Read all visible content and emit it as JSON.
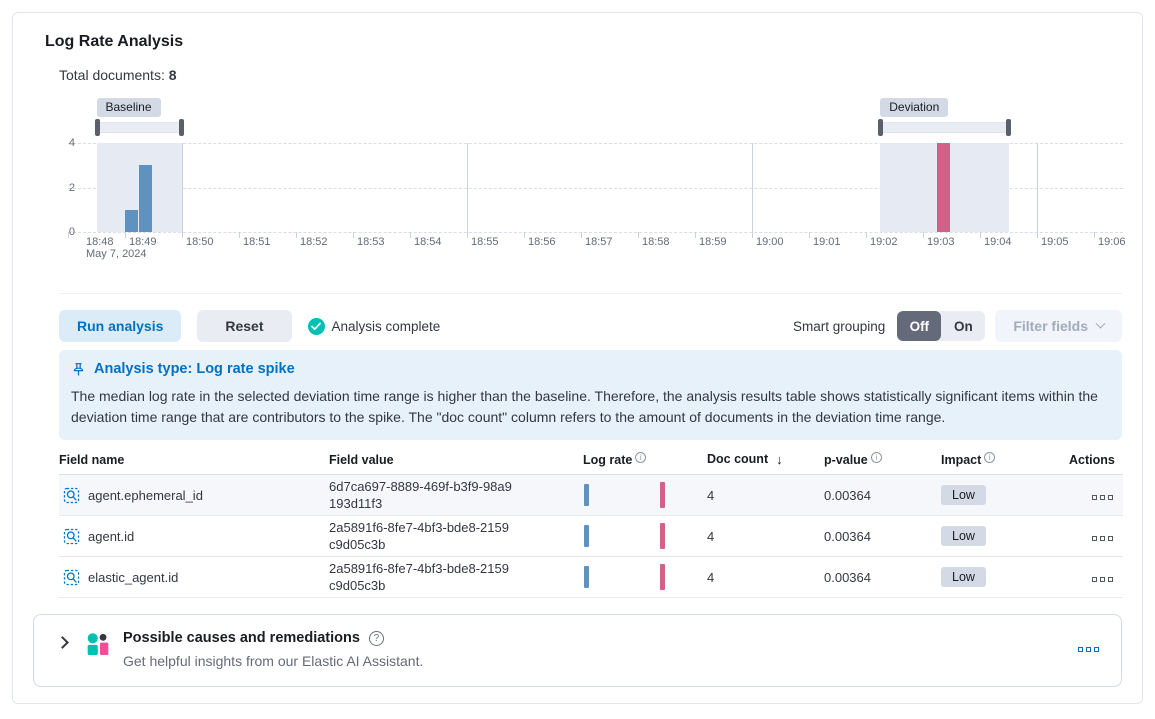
{
  "header": {
    "title": "Log Rate Analysis",
    "total_documents_label": "Total documents:",
    "total_documents_value": "8"
  },
  "chart_data": {
    "type": "bar",
    "title": "Document count histogram with baseline and deviation time ranges",
    "x_date_label": "May 7, 2024",
    "x_ticks": [
      "18:48",
      "18:49",
      "18:50",
      "18:51",
      "18:52",
      "18:53",
      "18:54",
      "18:55",
      "18:56",
      "18:57",
      "18:58",
      "18:59",
      "19:00",
      "19:01",
      "19:02",
      "19:03",
      "19:04",
      "19:05",
      "19:06"
    ],
    "y_ticks": [
      4,
      2,
      0
    ],
    "ylim": [
      0,
      4
    ],
    "bucket_seconds": 15,
    "grid": "horizontal-dashed, vertical every 5 minutes",
    "baseline": {
      "label": "Baseline",
      "window": [
        "18:48:30",
        "18:50:00"
      ],
      "color": "#6092C0",
      "bars": [
        {
          "time": "18:49:00",
          "value": 1
        },
        {
          "time": "18:49:15",
          "value": 3
        }
      ]
    },
    "deviation": {
      "label": "Deviation",
      "window": [
        "19:02:15",
        "19:04:30"
      ],
      "color": "#D36086",
      "bars": [
        {
          "time": "19:03:15",
          "value": 4
        }
      ]
    }
  },
  "toolbar": {
    "run_analysis": "Run analysis",
    "reset": "Reset",
    "status": "Analysis complete",
    "smart_grouping_label": "Smart grouping",
    "toggle_off": "Off",
    "toggle_on": "On",
    "filter_fields": "Filter fields"
  },
  "callout": {
    "title": "Analysis type: Log rate spike",
    "body": "The median log rate in the selected deviation time range is higher than the baseline. Therefore, the analysis results table shows statistically significant items within the deviation time range that are contributors to the spike. The \"doc count\" column refers to the amount of documents in the deviation time range."
  },
  "table": {
    "columns": {
      "field_name": "Field name",
      "field_value": "Field value",
      "log_rate": "Log rate",
      "doc_count": "Doc count",
      "p_value": "p-value",
      "impact": "Impact",
      "actions": "Actions"
    },
    "sort": {
      "column": "doc_count",
      "direction": "descending",
      "arrow": "↓"
    },
    "rows": [
      {
        "field_name": "agent.ephemeral_id",
        "field_value": "6d7ca697-8889-469f-b3f9-98a9193d11f3",
        "doc_count": "4",
        "p_value": "0.00364",
        "impact": "Low"
      },
      {
        "field_name": "agent.id",
        "field_value": "2a5891f6-8fe7-4bf3-bde8-2159c9d05c3b",
        "doc_count": "4",
        "p_value": "0.00364",
        "impact": "Low"
      },
      {
        "field_name": "elastic_agent.id",
        "field_value": "2a5891f6-8fe7-4bf3-bde8-2159c9d05c3b",
        "doc_count": "4",
        "p_value": "0.00364",
        "impact": "Low"
      }
    ]
  },
  "insights": {
    "title": "Possible causes and remediations",
    "subtitle": "Get helpful insights from our Elastic AI Assistant."
  },
  "colors": {
    "primary": "#0071C2",
    "barBlue": "#6092C0",
    "barPink": "#D36086",
    "success": "#00BFB3",
    "calloutBg": "#E6F1FA",
    "badgeBg": "#D3DAE6",
    "aiTeal": "#00BFB3",
    "aiPink": "#F04E98"
  }
}
